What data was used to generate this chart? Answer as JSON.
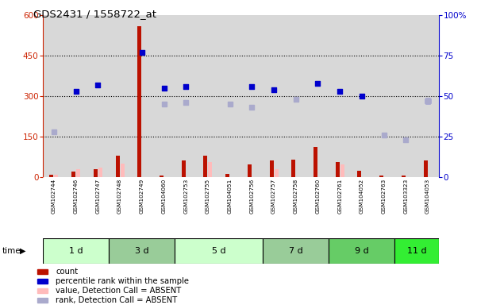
{
  "title": "GDS2431 / 1558722_at",
  "samples": [
    "GSM102744",
    "GSM102746",
    "GSM102747",
    "GSM102748",
    "GSM102749",
    "GSM104060",
    "GSM102753",
    "GSM102755",
    "GSM104051",
    "GSM102756",
    "GSM102757",
    "GSM102758",
    "GSM102760",
    "GSM102761",
    "GSM104052",
    "GSM102763",
    "GSM103323",
    "GSM104053"
  ],
  "groups": [
    {
      "label": "1 d",
      "indices": [
        0,
        1,
        2
      ],
      "color_light": "#e0ffe0",
      "color_dark": "#e0ffe0"
    },
    {
      "label": "3 d",
      "indices": [
        3,
        4,
        5
      ],
      "color_light": "#99dd99",
      "color_dark": "#99dd99"
    },
    {
      "label": "5 d",
      "indices": [
        6,
        7,
        8,
        9
      ],
      "color_light": "#e0ffe0",
      "color_dark": "#e0ffe0"
    },
    {
      "label": "7 d",
      "indices": [
        10,
        11,
        12
      ],
      "color_light": "#99dd99",
      "color_dark": "#99dd99"
    },
    {
      "label": "9 d",
      "indices": [
        13,
        14,
        15
      ],
      "color_light": "#77cc77",
      "color_dark": "#77cc77"
    },
    {
      "label": "11 d",
      "indices": [
        16,
        17
      ],
      "color_light": "#44ee44",
      "color_dark": "#44ee44"
    }
  ],
  "count": [
    8,
    20,
    30,
    80,
    560,
    4,
    60,
    80,
    12,
    45,
    60,
    65,
    110,
    55,
    22,
    6,
    4,
    60
  ],
  "percentile_rank_pct": [
    null,
    53,
    57,
    null,
    77,
    55,
    56,
    null,
    null,
    56,
    54,
    null,
    58,
    53,
    50,
    null,
    null,
    47
  ],
  "value_absent": [
    8,
    30,
    35,
    50,
    null,
    null,
    null,
    55,
    null,
    null,
    30,
    null,
    null,
    45,
    null,
    null,
    null,
    null
  ],
  "rank_absent_pct": [
    28,
    null,
    null,
    null,
    null,
    45,
    46,
    null,
    45,
    43,
    null,
    48,
    null,
    null,
    null,
    26,
    23,
    47
  ],
  "ylim_left": [
    0,
    600
  ],
  "ylim_right": [
    0,
    100
  ],
  "yticks_left": [
    0,
    150,
    300,
    450,
    600
  ],
  "yticks_right": [
    0,
    25,
    50,
    75,
    100
  ],
  "bg_color_plot": "#ffffff",
  "bar_color_red": "#bb1100",
  "bar_color_pink": "#ffbbbb",
  "dot_color_blue": "#0000cc",
  "dot_color_lightblue": "#aaaacc",
  "left_axis_color": "#cc2200",
  "right_axis_color": "#0000cc",
  "sample_bg": "#d8d8d8"
}
